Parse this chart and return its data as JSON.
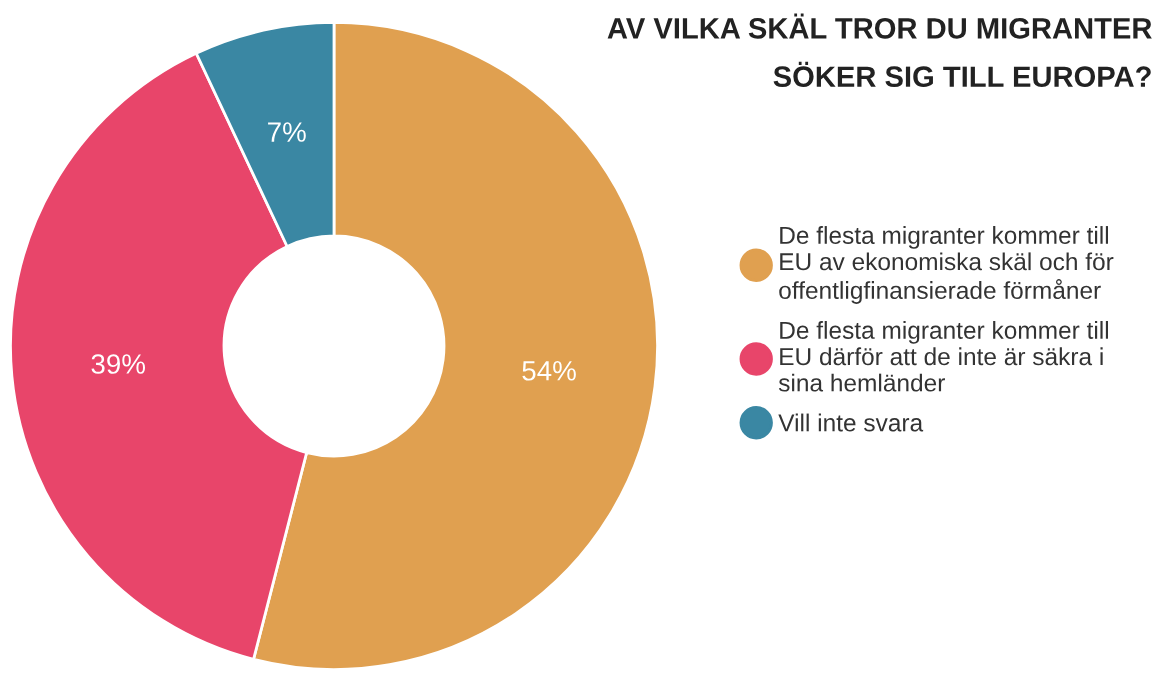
{
  "chart_data": {
    "type": "donut",
    "title": "AV VILKA SKÄL TROR DU MIGRANTER\nSÖKER SIG TILL EUROPA?",
    "categories": [
      "De flesta migranter kommer till\nEU av ekonomiska skäl och för\noffentligfinansierade förmåner",
      "De flesta migranter kommer till\nEU därför att de inte är säkra i\nsina hemländer",
      "Vill inte svara"
    ],
    "values": [
      54,
      39,
      7
    ],
    "colors": [
      "#e0a050",
      "#e8456a",
      "#3a87a3"
    ],
    "value_labels": [
      "54%",
      "39%",
      "7%"
    ],
    "legend": "right"
  }
}
